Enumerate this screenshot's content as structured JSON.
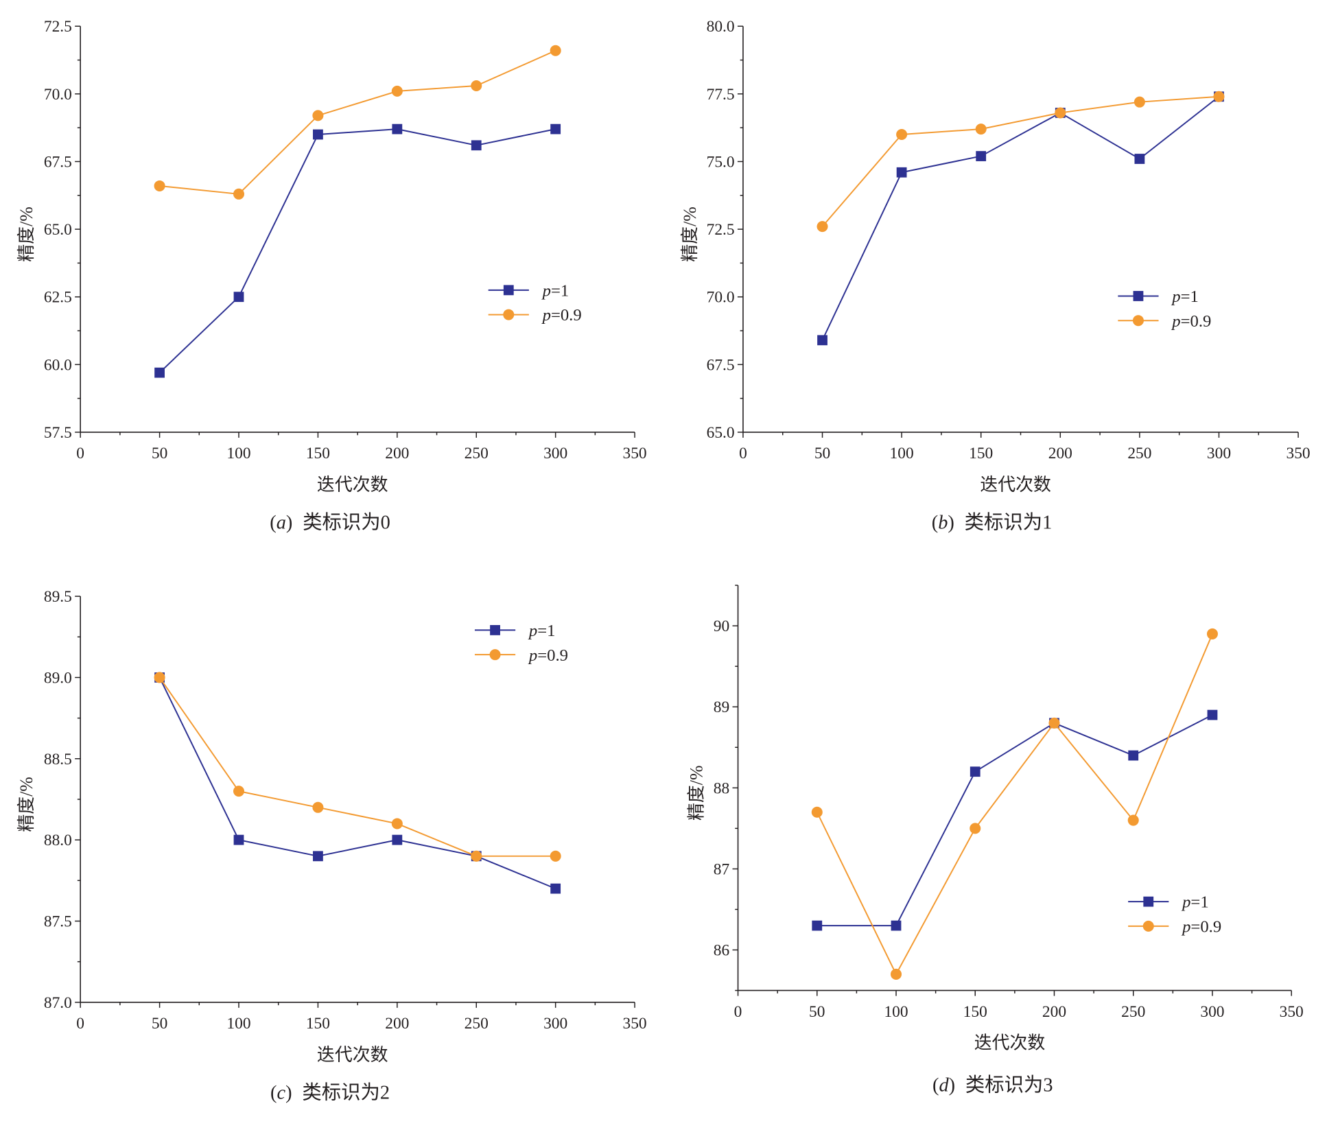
{
  "chart_data": [
    {
      "type": "line",
      "panel_label": "(a)",
      "title": "类标识为0",
      "xlabel": "迭代次数",
      "ylabel": "精度/%",
      "x": [
        50,
        100,
        150,
        200,
        250,
        300
      ],
      "xlim": [
        0,
        350
      ],
      "xticks": [
        0,
        50,
        100,
        150,
        200,
        250,
        300,
        350
      ],
      "xticklabels": [
        "0",
        "50",
        "100",
        "150",
        "200",
        "250",
        "300",
        "350"
      ],
      "ylim": [
        57.5,
        72.5
      ],
      "yticks": [
        57.5,
        60.0,
        62.5,
        65.0,
        67.5,
        70.0,
        72.5
      ],
      "yticklabels": [
        "57.5",
        "60.0",
        "62.5",
        "65.0",
        "67.5",
        "70.0",
        "72.5"
      ],
      "series": [
        {
          "name": "p=1",
          "values": [
            59.7,
            62.5,
            68.5,
            68.7,
            68.1,
            68.7
          ],
          "color": "#2D3192",
          "marker": "square"
        },
        {
          "name": "p=0.9",
          "values": [
            66.6,
            66.3,
            69.2,
            70.1,
            70.3,
            71.6
          ],
          "color": "#F39A31",
          "marker": "circle"
        }
      ],
      "legend": "center-right",
      "grid": false
    },
    {
      "type": "line",
      "panel_label": "(b)",
      "title": "类标识为1",
      "xlabel": "迭代次数",
      "ylabel": "精度/%",
      "x": [
        50,
        100,
        150,
        200,
        250,
        300
      ],
      "xlim": [
        0,
        350
      ],
      "xticks": [
        0,
        50,
        100,
        150,
        200,
        250,
        300,
        350
      ],
      "xticklabels": [
        "0",
        "50",
        "100",
        "150",
        "200",
        "250",
        "300",
        "350"
      ],
      "ylim": [
        65.0,
        80.0
      ],
      "yticks": [
        65.0,
        67.5,
        70.0,
        72.5,
        75.0,
        77.5,
        80.0
      ],
      "yticklabels": [
        "65.0",
        "67.5",
        "70.0",
        "72.5",
        "75.0",
        "77.5",
        "80.0"
      ],
      "series": [
        {
          "name": "p=1",
          "values": [
            68.4,
            74.6,
            75.2,
            76.8,
            75.1,
            77.4
          ],
          "color": "#2D3192",
          "marker": "square"
        },
        {
          "name": "p=0.9",
          "values": [
            72.6,
            76.0,
            76.2,
            76.8,
            77.2,
            77.4
          ],
          "color": "#F39A31",
          "marker": "circle"
        }
      ],
      "legend": "center-right",
      "grid": false
    },
    {
      "type": "line",
      "panel_label": "(c)",
      "title": "类标识为2",
      "xlabel": "迭代次数",
      "ylabel": "精度/%",
      "x": [
        50,
        100,
        150,
        200,
        250,
        300
      ],
      "xlim": [
        0,
        350
      ],
      "xticks": [
        0,
        50,
        100,
        150,
        200,
        250,
        300,
        350
      ],
      "xticklabels": [
        "0",
        "50",
        "100",
        "150",
        "200",
        "250",
        "300",
        "350"
      ],
      "ylim": [
        87.0,
        89.5
      ],
      "yticks": [
        87.0,
        87.5,
        88.0,
        88.5,
        89.0,
        89.5
      ],
      "yticklabels": [
        "87.0",
        "87.5",
        "88.0",
        "88.5",
        "89.0",
        "89.5"
      ],
      "series": [
        {
          "name": "p=1",
          "values": [
            89.0,
            88.0,
            87.9,
            88.0,
            87.9,
            87.7
          ],
          "color": "#2D3192",
          "marker": "square"
        },
        {
          "name": "p=0.9",
          "values": [
            89.0,
            88.3,
            88.2,
            88.1,
            87.9,
            87.9
          ],
          "color": "#F39A31",
          "marker": "circle"
        }
      ],
      "legend": "top-right",
      "grid": false
    },
    {
      "type": "line",
      "panel_label": "(d)",
      "title": "类标识为3",
      "xlabel": "迭代次数",
      "ylabel": "精度/%",
      "x": [
        50,
        100,
        150,
        200,
        250,
        300
      ],
      "xlim": [
        0,
        350
      ],
      "xticks": [
        0,
        50,
        100,
        150,
        200,
        250,
        300,
        350
      ],
      "xticklabels": [
        "0",
        "50",
        "100",
        "150",
        "200",
        "250",
        "300",
        "350"
      ],
      "ylim": [
        85.5,
        90.5
      ],
      "yticks": [
        86,
        87,
        88,
        89,
        90
      ],
      "yticklabels": [
        "86",
        "87",
        "88",
        "89",
        "90"
      ],
      "series": [
        {
          "name": "p=1",
          "values": [
            86.3,
            86.3,
            88.2,
            88.8,
            88.4,
            88.9
          ],
          "color": "#2D3192",
          "marker": "square"
        },
        {
          "name": "p=0.9",
          "values": [
            87.7,
            85.7,
            87.5,
            88.8,
            87.6,
            89.9
          ],
          "color": "#F39A31",
          "marker": "circle"
        }
      ],
      "legend": "bottom-right",
      "grid": false
    }
  ]
}
